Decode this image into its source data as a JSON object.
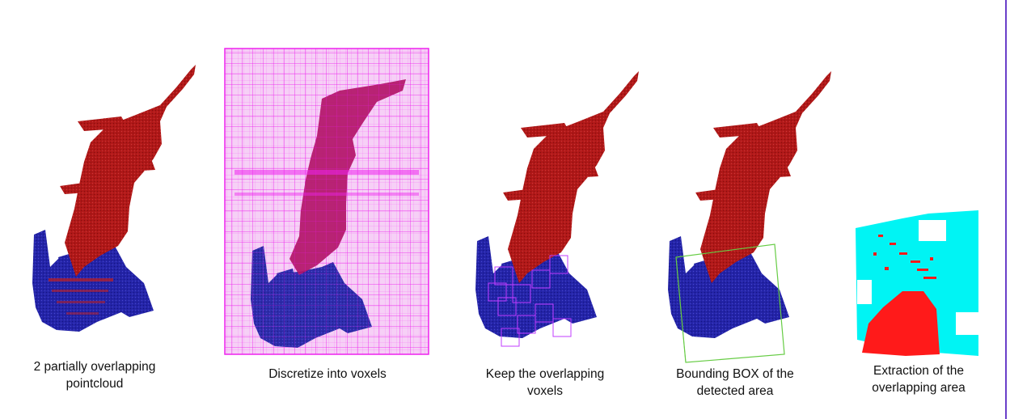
{
  "colors": {
    "cloud_a": "#b01818",
    "cloud_b": "#2424a8",
    "voxel_grid": "#ee22ee",
    "voxel_kept": "#c13cff",
    "bbox": "#66cc44",
    "extract_red": "#ff1a1a",
    "extract_cyan": "#00f4f4",
    "border": "#6a3fc9"
  },
  "steps": [
    {
      "caption": "2 partially overlapping\npointcloud"
    },
    {
      "caption": "Discretize into voxels"
    },
    {
      "caption": "Keep the overlapping\nvoxels"
    },
    {
      "caption": "Bounding BOX of the\ndetected area"
    },
    {
      "caption": "Extraction of the\noverlapping area"
    }
  ]
}
